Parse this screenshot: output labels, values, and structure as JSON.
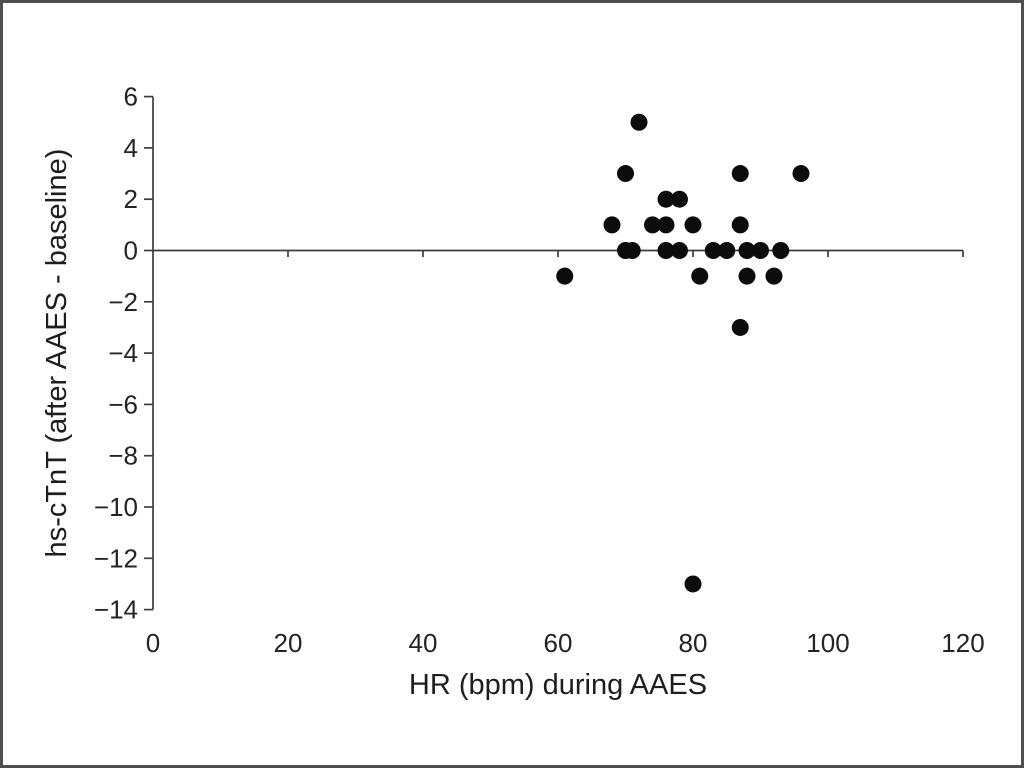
{
  "page": {
    "background_color": "#ffffff",
    "border_color": "#505050"
  },
  "chart_data": {
    "type": "scatter",
    "title": "",
    "xlabel": "HR (bpm) during AAES",
    "ylabel": "hs-cTnT (after AAES - baseline)",
    "xlim": [
      0,
      120
    ],
    "ylim": [
      -14,
      6
    ],
    "x_ticks": [
      0,
      20,
      40,
      60,
      80,
      100,
      120
    ],
    "y_ticks": [
      6,
      4,
      2,
      0,
      -2,
      -4,
      -6,
      -8,
      -10,
      -12,
      -14
    ],
    "grid": false,
    "legend": null,
    "axis_color": "#3d3d3d",
    "text_color": "#242424",
    "marker_color": "#0c0c0c",
    "marker_radius_px": 8.5,
    "x_axis_position": "zero-line",
    "points": [
      {
        "x": 72,
        "y": 5
      },
      {
        "x": 70,
        "y": 3
      },
      {
        "x": 87,
        "y": 3
      },
      {
        "x": 96,
        "y": 3
      },
      {
        "x": 76,
        "y": 2
      },
      {
        "x": 78,
        "y": 2
      },
      {
        "x": 68,
        "y": 1
      },
      {
        "x": 74,
        "y": 1
      },
      {
        "x": 76,
        "y": 1
      },
      {
        "x": 80,
        "y": 1
      },
      {
        "x": 87,
        "y": 1
      },
      {
        "x": 70,
        "y": 0
      },
      {
        "x": 71,
        "y": 0
      },
      {
        "x": 76,
        "y": 0
      },
      {
        "x": 78,
        "y": 0
      },
      {
        "x": 83,
        "y": 0
      },
      {
        "x": 85,
        "y": 0
      },
      {
        "x": 88,
        "y": 0
      },
      {
        "x": 90,
        "y": 0
      },
      {
        "x": 93,
        "y": 0
      },
      {
        "x": 61,
        "y": -1
      },
      {
        "x": 81,
        "y": -1
      },
      {
        "x": 88,
        "y": -1
      },
      {
        "x": 92,
        "y": -1
      },
      {
        "x": 87,
        "y": -3
      },
      {
        "x": 80,
        "y": -13
      }
    ]
  }
}
